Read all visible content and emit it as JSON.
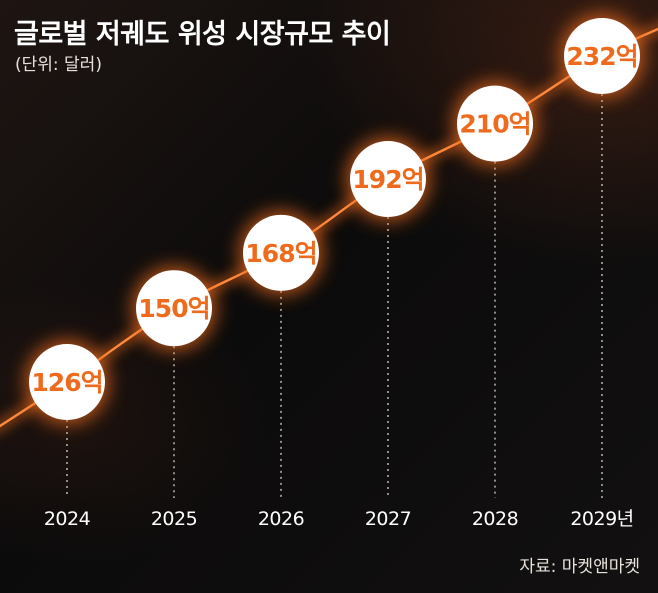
{
  "title": "글로벌 저궤도 위성 시장규모 추이",
  "unit_note": "(단위: 달러)",
  "source": "자료: 마켓앤마켓",
  "colors": {
    "accent": "#ee6a1d",
    "bubble": "#ffffff",
    "text": "#ffffff"
  },
  "chart_data": {
    "type": "line",
    "x": [
      "2024",
      "2025",
      "2026",
      "2027",
      "2028",
      "2029"
    ],
    "tick_labels": [
      "2024",
      "2025",
      "2026",
      "2027",
      "2028",
      "2029년"
    ],
    "data_labels": [
      "126억",
      "150억",
      "168억",
      "192억",
      "210억",
      "232억"
    ],
    "series": [
      {
        "values": [
          126,
          150,
          168,
          192,
          210,
          232
        ]
      }
    ],
    "ylim": [
      126,
      232
    ],
    "grid": false,
    "legend": "none"
  }
}
